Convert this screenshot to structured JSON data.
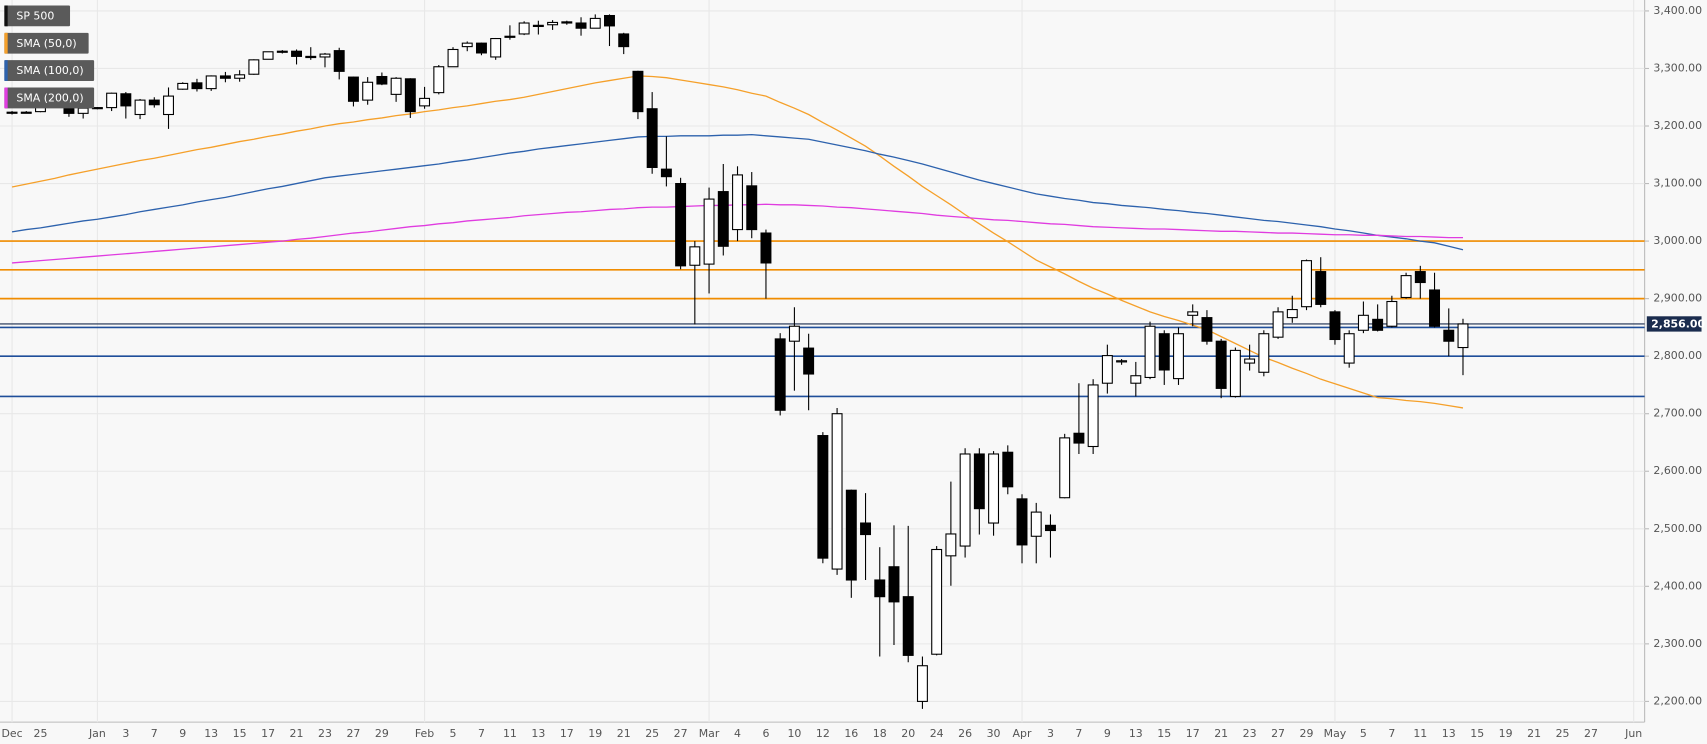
{
  "chart_data": {
    "type": "candlestick",
    "categories": [
      "Dec",
      null,
      "25",
      null,
      null,
      null,
      "Jan",
      null,
      "3",
      null,
      "7",
      null,
      "9",
      null,
      "13",
      null,
      "15",
      null,
      "17",
      null,
      "21",
      null,
      "23",
      null,
      "27",
      null,
      "29",
      null,
      null,
      "Feb",
      null,
      "5",
      null,
      "7",
      null,
      "11",
      null,
      "13",
      null,
      "17",
      null,
      "19",
      null,
      "21",
      null,
      "25",
      null,
      "27",
      null,
      "Mar",
      null,
      "4",
      null,
      "6",
      null,
      "10",
      null,
      "12",
      null,
      "16",
      null,
      "18",
      null,
      "20",
      null,
      "24",
      null,
      "26",
      null,
      "30",
      null,
      "Apr",
      null,
      "3",
      null,
      "7",
      null,
      "9",
      null,
      "13",
      null,
      "15",
      null,
      "17",
      null,
      "21",
      null,
      "23",
      null,
      "27",
      null,
      "29",
      null,
      "May",
      null,
      "5",
      null,
      "7",
      null,
      "11",
      null,
      "13",
      null,
      "15",
      null,
      "19",
      null,
      "21",
      null,
      "25",
      null,
      "27",
      null,
      null,
      "Jun"
    ],
    "series": [
      {
        "name": "SP 500",
        "color": "#000000",
        "open": [
          3224,
          3223,
          3225,
          3240,
          3240,
          3222,
          3231,
          3232,
          3256,
          3220,
          3245,
          3220,
          3264,
          3275,
          3265,
          3287,
          3283,
          3290,
          3316,
          3329,
          3330,
          3321,
          3320,
          3331,
          3285,
          3245,
          3286,
          3255,
          3282,
          3235,
          3258,
          3303,
          3338,
          3344,
          3320,
          3356,
          3360,
          3375,
          3376,
          3381,
          3379,
          3370,
          3392,
          3360,
          3295,
          3230,
          3125,
          3100,
          2958,
          2960,
          3086,
          3020,
          3096,
          3014,
          2830,
          2826,
          2814,
          2662,
          2430,
          2567,
          2510,
          2411,
          2434,
          2382,
          2200,
          2282,
          2453,
          2470,
          2630,
          2510,
          2633,
          2552,
          2487,
          2506,
          2554,
          2666,
          2643,
          2753,
          2790,
          2753,
          2763,
          2839,
          2761,
          2871,
          2867,
          2826,
          2730,
          2788,
          2772,
          2833,
          2867,
          2886,
          2947,
          2877,
          2788,
          2845,
          2864,
          2852,
          2902,
          2947,
          2915,
          2845,
          2815,
          null,
          null,
          null,
          null,
          null,
          null,
          null,
          null,
          null,
          null,
          null,
          null
        ],
        "high": [
          3226,
          3226,
          3241,
          3247,
          3243,
          3232,
          3233,
          3258,
          3259,
          3247,
          3250,
          3267,
          3276,
          3282,
          3288,
          3294,
          3297,
          3316,
          3329,
          3332,
          3333,
          3337,
          3327,
          3336,
          3286,
          3285,
          3293,
          3285,
          3283,
          3268,
          3306,
          3337,
          3347,
          3345,
          3353,
          3375,
          3382,
          3383,
          3384,
          3383,
          3389,
          3394,
          3394,
          3362,
          3296,
          3259,
          3182,
          3110,
          3000,
          3093,
          3134,
          3130,
          3120,
          3020,
          2840,
          2885,
          2839,
          2668,
          2710,
          2568,
          2562,
          2468,
          2506,
          2505,
          2278,
          2470,
          2582,
          2640,
          2640,
          2635,
          2645,
          2560,
          2545,
          2525,
          2665,
          2753,
          2760,
          2820,
          2795,
          2790,
          2860,
          2845,
          2850,
          2890,
          2880,
          2830,
          2815,
          2820,
          2845,
          2885,
          2905,
          2968,
          2972,
          2880,
          2845,
          2895,
          2890,
          2905,
          2945,
          2957,
          2945,
          2883,
          2865,
          null,
          null,
          null,
          null,
          null,
          null,
          null,
          null,
          null,
          null,
          null,
          null
        ],
        "low": [
          3220,
          3222,
          3224,
          3234,
          3216,
          3213,
          3229,
          3226,
          3213,
          3212,
          3232,
          3195,
          3263,
          3260,
          3261,
          3276,
          3277,
          3289,
          3316,
          3326,
          3307,
          3315,
          3302,
          3281,
          3234,
          3237,
          3271,
          3242,
          3214,
          3230,
          3255,
          3303,
          3330,
          3323,
          3315,
          3350,
          3358,
          3359,
          3367,
          3376,
          3357,
          3370,
          3339,
          3325,
          3212,
          3117,
          3095,
          2951,
          2855,
          2909,
          2975,
          3000,
          3005,
          2900,
          2697,
          2740,
          2706,
          2440,
          2420,
          2380,
          2411,
          2278,
          2298,
          2268,
          2187,
          2280,
          2401,
          2450,
          2490,
          2488,
          2560,
          2440,
          2440,
          2450,
          2553,
          2630,
          2630,
          2735,
          2785,
          2730,
          2760,
          2750,
          2750,
          2852,
          2820,
          2727,
          2728,
          2775,
          2765,
          2830,
          2858,
          2880,
          2885,
          2820,
          2780,
          2840,
          2843,
          2850,
          2900,
          2900,
          2850,
          2800,
          2767,
          null,
          null,
          null,
          null,
          null,
          null,
          null,
          null,
          null,
          null,
          null,
          null
        ],
        "close": [
          3223,
          3224,
          3240,
          3239,
          3222,
          3231,
          3232,
          3257,
          3235,
          3245,
          3237,
          3252,
          3274,
          3265,
          3287,
          3283,
          3289,
          3315,
          3329,
          3330,
          3321,
          3319,
          3325,
          3295,
          3243,
          3276,
          3273,
          3283,
          3225,
          3248,
          3303,
          3333,
          3344,
          3327,
          3352,
          3356,
          3379,
          3373,
          3380,
          3379,
          3370,
          3387,
          3374,
          3338,
          3225,
          3128,
          3112,
          2957,
          2990,
          3073,
          2991,
          3115,
          3020,
          2962,
          2706,
          2852,
          2769,
          2449,
          2700,
          2411,
          2490,
          2382,
          2373,
          2280,
          2262,
          2464,
          2491,
          2630,
          2535,
          2630,
          2573,
          2472,
          2529,
          2497,
          2658,
          2649,
          2750,
          2801,
          2792,
          2766,
          2852,
          2776,
          2839,
          2877,
          2826,
          2744,
          2810,
          2795,
          2839,
          2877,
          2881,
          2966,
          2890,
          2829,
          2839,
          2871,
          2845,
          2895,
          2940,
          2928,
          2852,
          2826,
          2856,
          null,
          null,
          null,
          null,
          null,
          null,
          null,
          null,
          null,
          null,
          null,
          null
        ]
      },
      {
        "name": "SMA (50,0)",
        "color": "#f5a02a",
        "values": [
          3094,
          3099,
          3104,
          3109,
          3115,
          3120,
          3125,
          3130,
          3135,
          3140,
          3144,
          3149,
          3154,
          3159,
          3163,
          3168,
          3173,
          3177,
          3182,
          3186,
          3191,
          3195,
          3200,
          3204,
          3207,
          3211,
          3214,
          3218,
          3221,
          3225,
          3228,
          3232,
          3235,
          3239,
          3243,
          3246,
          3250,
          3255,
          3260,
          3265,
          3270,
          3275,
          3279,
          3283,
          3287,
          3286,
          3284,
          3280,
          3276,
          3272,
          3268,
          3263,
          3257,
          3252,
          3241,
          3231,
          3220,
          3206,
          3193,
          3179,
          3165,
          3148,
          3130,
          3113,
          3095,
          3079,
          3063,
          3046,
          3030,
          3014,
          2999,
          2983,
          2967,
          2955,
          2943,
          2930,
          2918,
          2908,
          2897,
          2887,
          2877,
          2869,
          2862,
          2854,
          2846,
          2834,
          2822,
          2810,
          2798,
          2789,
          2779,
          2770,
          2760,
          2752,
          2744,
          2736,
          2728,
          2726,
          2723,
          2721,
          2718,
          2714,
          2710,
          null,
          null,
          null,
          null,
          null,
          null,
          null,
          null,
          null,
          null,
          null,
          null
        ]
      },
      {
        "name": "SMA (100,0)",
        "color": "#2d62ad",
        "values": [
          3016,
          3020,
          3023,
          3027,
          3031,
          3035,
          3038,
          3042,
          3046,
          3051,
          3055,
          3059,
          3063,
          3068,
          3072,
          3076,
          3081,
          3086,
          3091,
          3095,
          3100,
          3105,
          3110,
          3113,
          3116,
          3119,
          3122,
          3125,
          3128,
          3131,
          3134,
          3138,
          3141,
          3145,
          3149,
          3153,
          3156,
          3160,
          3163,
          3166,
          3169,
          3172,
          3175,
          3178,
          3181,
          3182,
          3182,
          3183,
          3183,
          3183,
          3184,
          3184,
          3185,
          3183,
          3181,
          3179,
          3177,
          3172,
          3167,
          3162,
          3157,
          3151,
          3146,
          3140,
          3134,
          3127,
          3120,
          3113,
          3106,
          3100,
          3094,
          3088,
          3082,
          3078,
          3074,
          3071,
          3067,
          3065,
          3062,
          3060,
          3058,
          3055,
          3053,
          3050,
          3048,
          3045,
          3042,
          3039,
          3036,
          3034,
          3031,
          3028,
          3025,
          3021,
          3018,
          3014,
          3010,
          3007,
          3004,
          3000,
          2997,
          2991,
          2985,
          null,
          null,
          null,
          null,
          null,
          null,
          null,
          null,
          null,
          null,
          null,
          null
        ]
      },
      {
        "name": "SMA (200,0)",
        "color": "#e03ce0",
        "values": [
          2962,
          2964,
          2966,
          2968,
          2970,
          2972,
          2974,
          2976,
          2978,
          2980,
          2982,
          2984,
          2986,
          2988,
          2990,
          2992,
          2994,
          2996,
          2998,
          3000,
          3003,
          3005,
          3008,
          3011,
          3014,
          3016,
          3019,
          3022,
          3025,
          3027,
          3030,
          3032,
          3035,
          3037,
          3039,
          3041,
          3044,
          3046,
          3048,
          3050,
          3051,
          3053,
          3055,
          3056,
          3058,
          3059,
          3059,
          3060,
          3061,
          3062,
          3062,
          3063,
          3063,
          3064,
          3063,
          3063,
          3062,
          3061,
          3059,
          3058,
          3056,
          3054,
          3052,
          3050,
          3048,
          3045,
          3043,
          3041,
          3039,
          3037,
          3036,
          3034,
          3032,
          3030,
          3029,
          3027,
          3025,
          3024,
          3023,
          3022,
          3021,
          3021,
          3020,
          3019,
          3018,
          3017,
          3017,
          3016,
          3015,
          3014,
          3014,
          3013,
          3012,
          3011,
          3011,
          3010,
          3010,
          3009,
          3008,
          3008,
          3007,
          3006,
          3006,
          null,
          null,
          null,
          null,
          null,
          null,
          null,
          null,
          null,
          null,
          null,
          null
        ]
      }
    ],
    "levels": [
      {
        "value": 3000,
        "color": "#f08c00"
      },
      {
        "value": 2950,
        "color": "#f08c00"
      },
      {
        "value": 2900,
        "color": "#f08c00"
      },
      {
        "value": 2850,
        "color": "#1f4e9a"
      },
      {
        "value": 2800,
        "color": "#1f4e9a"
      },
      {
        "value": 2730,
        "color": "#1f4e9a"
      }
    ],
    "last_price": {
      "value": 2856,
      "label": "2,856.00",
      "color": "#1a2c4e"
    },
    "ylim": [
      2164,
      3419
    ],
    "yticks": [
      {
        "value": 2200,
        "label": "2,200.00"
      },
      {
        "value": 2300,
        "label": "2,300.00"
      },
      {
        "value": 2400,
        "label": "2,400.00"
      },
      {
        "value": 2500,
        "label": "2,500.00"
      },
      {
        "value": 2600,
        "label": "2,600.00"
      },
      {
        "value": 2700,
        "label": "2,700.00"
      },
      {
        "value": 2800,
        "label": "2,800.00"
      },
      {
        "value": 2900,
        "label": "2,900.00"
      },
      {
        "value": 3000,
        "label": "3,000.00"
      },
      {
        "value": 3100,
        "label": "3,100.00"
      },
      {
        "value": 3200,
        "label": "3,200.00"
      },
      {
        "value": 3300,
        "label": "3,300.00"
      },
      {
        "value": 3400,
        "label": "3,400.00"
      }
    ],
    "grid": true
  }
}
